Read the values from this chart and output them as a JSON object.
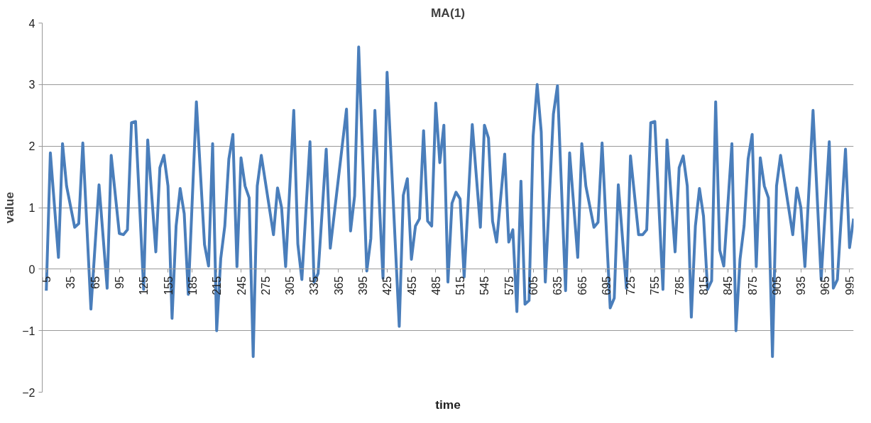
{
  "chart_data": {
    "type": "line",
    "title": "MA(1)",
    "xlabel": "time",
    "ylabel": "value",
    "xlim": [
      0,
      1000
    ],
    "xticks": [
      5,
      35,
      65,
      95,
      125,
      155,
      185,
      215,
      245,
      275,
      305,
      335,
      365,
      395,
      425,
      455,
      485,
      515,
      545,
      575,
      605,
      635,
      665,
      695,
      725,
      755,
      785,
      815,
      845,
      875,
      905,
      935,
      965,
      995
    ],
    "ylim": [
      -2,
      4
    ],
    "yticks": [
      -2,
      -1,
      0,
      1,
      2,
      3,
      4
    ],
    "grid": "y",
    "line_style": "solid",
    "marker": "none",
    "series": [
      {
        "color": "#4a7ebb",
        "x": [
          5,
          10,
          20,
          25,
          30,
          40,
          45,
          50,
          60,
          70,
          80,
          85,
          95,
          100,
          105,
          110,
          115,
          125,
          130,
          140,
          145,
          150,
          155,
          160,
          165,
          170,
          175,
          180,
          190,
          200,
          205,
          210,
          215,
          220,
          225,
          230,
          235,
          240,
          245,
          250,
          255,
          260,
          265,
          270,
          285,
          290,
          295,
          300,
          310,
          315,
          320,
          330,
          335,
          340,
          350,
          355,
          375,
          380,
          385,
          390,
          400,
          405,
          410,
          420,
          425,
          440,
          445,
          450,
          455,
          460,
          465,
          470,
          475,
          480,
          485,
          490,
          495,
          500,
          505,
          510,
          515,
          520,
          530,
          540,
          545,
          550,
          555,
          560,
          570,
          575,
          580,
          585,
          590,
          595,
          600,
          605,
          610,
          615,
          620,
          630,
          635,
          645,
          650,
          660,
          665,
          670,
          680,
          685,
          690,
          700,
          705,
          710,
          720,
          725,
          735,
          740,
          745,
          750,
          755,
          765,
          770,
          780,
          785,
          790,
          795,
          800,
          805,
          810,
          815,
          820,
          825,
          830,
          835,
          840,
          850,
          855,
          860,
          865,
          870,
          875,
          880,
          885,
          890,
          895,
          900,
          905,
          910,
          925,
          930,
          935,
          940,
          950,
          960,
          970,
          975,
          980,
          990,
          995,
          1000
        ],
        "values": [
          -0.35,
          1.89,
          0.19,
          2.04,
          1.35,
          0.68,
          0.74,
          2.05,
          -0.65,
          1.37,
          -0.31,
          1.85,
          0.58,
          0.56,
          0.64,
          2.38,
          2.4,
          -0.33,
          2.1,
          0.28,
          1.65,
          1.85,
          1.35,
          -0.8,
          0.7,
          1.31,
          0.9,
          -0.41,
          2.72,
          0.4,
          0.05,
          2.04,
          -1.0,
          0.17,
          0.7,
          1.79,
          2.19,
          0.04,
          1.81,
          1.35,
          1.16,
          -1.42,
          1.35,
          1.85,
          0.56,
          1.32,
          1.0,
          0.04,
          2.58,
          0.41,
          -0.17,
          2.07,
          -0.21,
          -0.07,
          1.95,
          0.34,
          2.6,
          0.62,
          1.19,
          3.61,
          -0.03,
          0.5,
          2.58,
          -0.15,
          3.2,
          -0.93,
          1.2,
          1.47,
          0.16,
          0.7,
          0.82,
          2.25,
          0.78,
          0.7,
          2.7,
          1.73,
          2.34,
          -0.21,
          1.07,
          1.25,
          1.14,
          -0.13,
          2.35,
          0.68,
          2.34,
          2.13,
          0.78,
          0.44,
          1.87,
          0.44,
          0.64,
          -0.69,
          1.43,
          -0.57,
          -0.51,
          2.16,
          3.0,
          2.23,
          -0.21,
          2.52,
          2.98,
          -0.35,
          1.89,
          0.19,
          2.04,
          1.35,
          0.68,
          0.76,
          2.05,
          -0.63,
          -0.47,
          1.37,
          -0.31,
          1.84,
          0.56,
          0.56,
          0.64,
          2.38,
          2.4,
          -0.33,
          2.1,
          0.28,
          1.65,
          1.84,
          1.35,
          -0.78,
          0.7,
          1.31,
          0.86,
          -0.33,
          -0.19,
          2.72,
          0.31,
          0.05,
          2.04,
          -1.0,
          0.16,
          0.7,
          1.79,
          2.19,
          0.04,
          1.81,
          1.35,
          1.16,
          -1.42,
          1.35,
          1.85,
          0.56,
          1.32,
          1.0,
          0.04,
          2.58,
          -0.17,
          2.07,
          -0.31,
          -0.17,
          1.95,
          0.35,
          0.82
        ]
      }
    ]
  }
}
